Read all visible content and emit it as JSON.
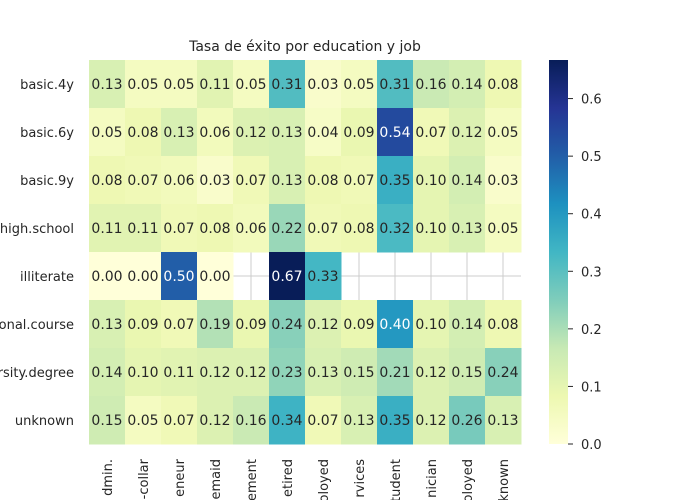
{
  "chart_data": {
    "type": "heatmap",
    "title": "Tasa de éxito por education y job",
    "xlabel": "",
    "ylabel": "",
    "rows": [
      "basic.4y",
      "basic.6y",
      "basic.9y",
      "high.school",
      "illiterate",
      "professional.course",
      "university.degree",
      "unknown"
    ],
    "row_labels_visible": [
      "basic.4y",
      "basic.6y",
      "basic.9y",
      "high.school",
      "illiterate",
      "onal.course",
      "rsity.degree",
      "unknown"
    ],
    "columns": [
      "admin.",
      "blue-collar",
      "entrepreneur",
      "housemaid",
      "management",
      "retired",
      "self-employed",
      "services",
      "student",
      "technician",
      "unemployed",
      "unknown"
    ],
    "column_labels_visible": [
      "dmin.",
      "-collar",
      "eneur",
      "emaid",
      "ement",
      "etired",
      "oloyed",
      "rvices",
      "tudent",
      "nician",
      "oloyed",
      "known"
    ],
    "values": [
      [
        0.13,
        0.05,
        0.05,
        0.11,
        0.05,
        0.31,
        0.03,
        0.05,
        0.31,
        0.16,
        0.14,
        0.08
      ],
      [
        0.05,
        0.08,
        0.13,
        0.06,
        0.12,
        0.13,
        0.04,
        0.09,
        0.54,
        0.07,
        0.12,
        0.05
      ],
      [
        0.08,
        0.07,
        0.06,
        0.03,
        0.07,
        0.13,
        0.08,
        0.07,
        0.35,
        0.1,
        0.14,
        0.03
      ],
      [
        0.11,
        0.11,
        0.07,
        0.08,
        0.06,
        0.22,
        0.07,
        0.08,
        0.32,
        0.1,
        0.13,
        0.05
      ],
      [
        0.0,
        0.0,
        0.5,
        0.0,
        null,
        0.67,
        0.33,
        null,
        null,
        null,
        null,
        null
      ],
      [
        0.13,
        0.09,
        0.07,
        0.19,
        0.09,
        0.24,
        0.12,
        0.09,
        0.4,
        0.1,
        0.14,
        0.08
      ],
      [
        0.14,
        0.1,
        0.11,
        0.12,
        0.12,
        0.23,
        0.13,
        0.15,
        0.21,
        0.12,
        0.15,
        0.24
      ],
      [
        0.15,
        0.05,
        0.07,
        0.12,
        0.16,
        0.34,
        0.07,
        0.13,
        0.35,
        0.12,
        0.26,
        0.13
      ]
    ],
    "value_format": "2 decimals",
    "colormap": "YlGnBu",
    "vmin": 0.0,
    "vmax": 0.667,
    "colorbar_ticks": [
      "0.0",
      "0.1",
      "0.2",
      "0.3",
      "0.4",
      "0.5",
      "0.6"
    ],
    "grid": true,
    "colorbar_placement": "right"
  }
}
